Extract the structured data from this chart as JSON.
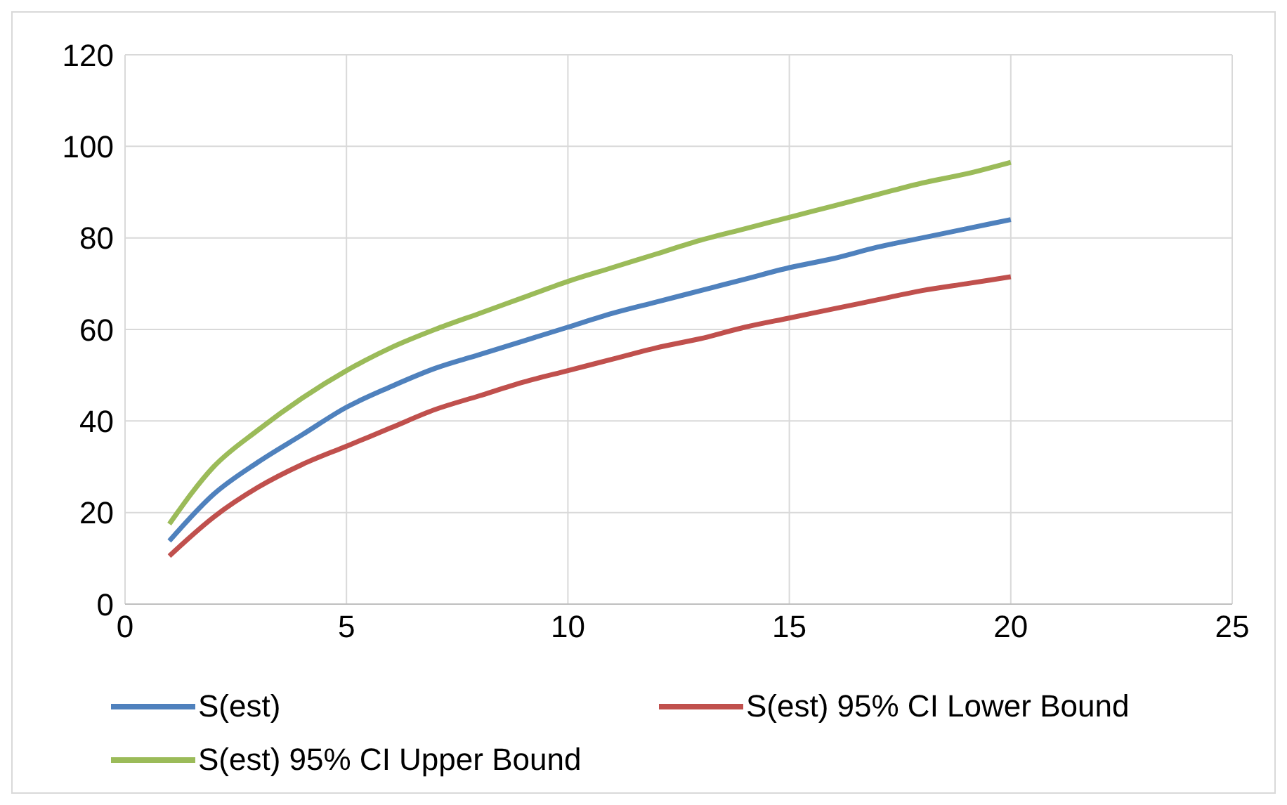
{
  "chart_data": {
    "type": "line",
    "x": [
      1,
      2,
      3,
      4,
      5,
      6,
      7,
      8,
      9,
      10,
      11,
      12,
      13,
      14,
      15,
      16,
      17,
      18,
      19,
      20
    ],
    "series": [
      {
        "name": "S(est)",
        "color": "#4f81bd",
        "values": [
          13.8,
          24,
          31,
          37,
          43,
          47.5,
          51.5,
          54.5,
          57.5,
          60.5,
          63.5,
          66,
          68.5,
          71,
          73.5,
          75.5,
          78,
          80,
          82,
          84
        ]
      },
      {
        "name": "S(est) 95% CI Lower Bound",
        "color": "#c0504d",
        "values": [
          10.5,
          19,
          25.5,
          30.5,
          34.5,
          38.5,
          42.5,
          45.5,
          48.5,
          51,
          53.5,
          56,
          58,
          60.5,
          62.5,
          64.5,
          66.5,
          68.5,
          70,
          71.5
        ]
      },
      {
        "name": "S(est) 95% CI Upper Bound",
        "color": "#9bbb59",
        "values": [
          17.5,
          30,
          38,
          45,
          51,
          56,
          60,
          63.5,
          67,
          70.5,
          73.5,
          76.5,
          79.5,
          82,
          84.5,
          87,
          89.5,
          92,
          94,
          96.5
        ]
      }
    ],
    "xlim": [
      0,
      25
    ],
    "xticks": [
      0,
      5,
      10,
      15,
      20,
      25
    ],
    "ylim": [
      0,
      120
    ],
    "yticks": [
      0,
      20,
      40,
      60,
      80,
      100,
      120
    ],
    "grid": true,
    "legend": "bottom",
    "marker": "none",
    "line_style": "solid"
  }
}
